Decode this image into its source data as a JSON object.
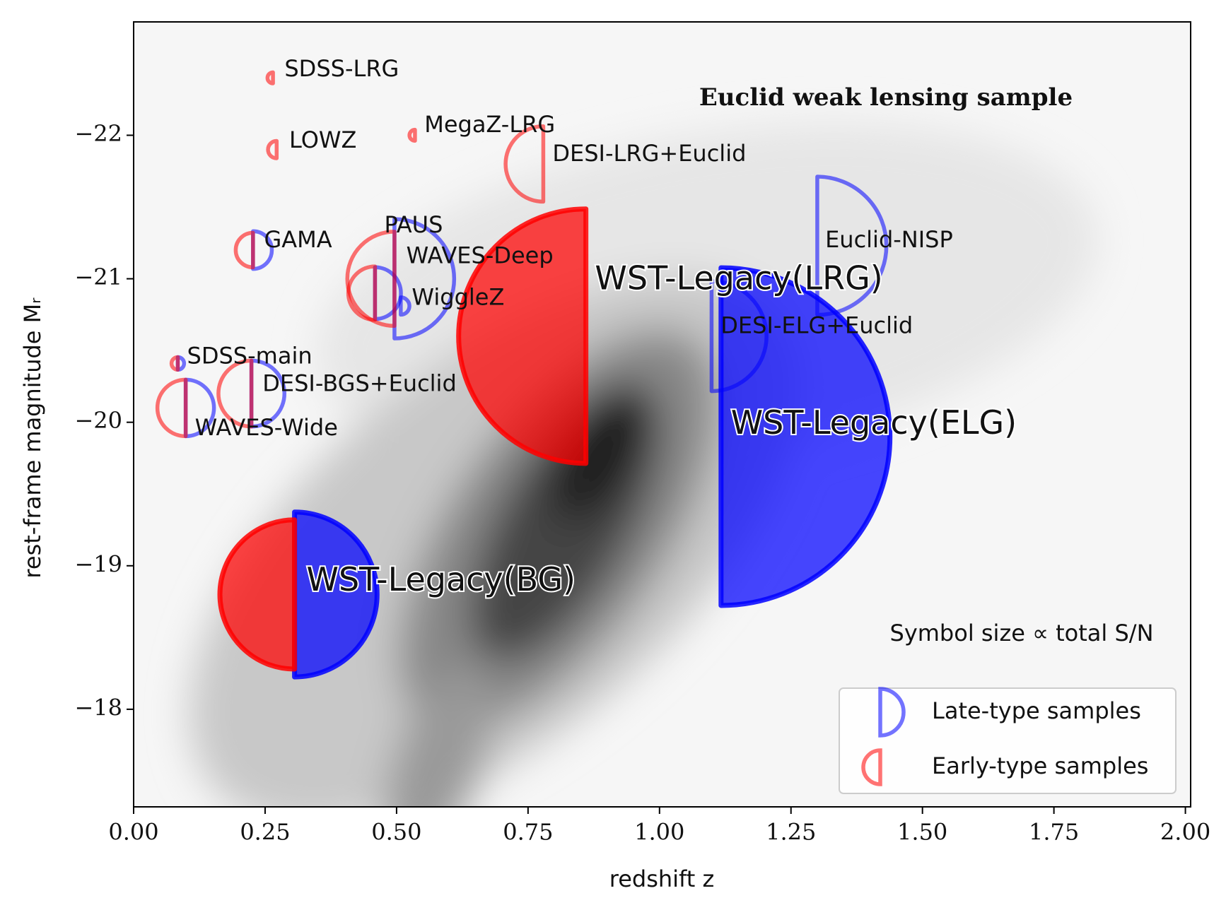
{
  "chart_data": {
    "type": "scatter",
    "title": "Euclid weak lensing sample",
    "xlabel": "redshift z",
    "ylabel": "rest-frame magnitude Mᵣ",
    "note": "Symbol size ∝ total S/N",
    "xlim": [
      0,
      2.01
    ],
    "ylim": [
      -22.79,
      -17.32
    ],
    "y_inverted": true,
    "xticks": [
      {
        "value": 0,
        "label": "0.00"
      },
      {
        "value": 0.25,
        "label": "0.25"
      },
      {
        "value": 0.5,
        "label": "0.50"
      },
      {
        "value": 0.75,
        "label": "0.75"
      },
      {
        "value": 1,
        "label": "1.00"
      },
      {
        "value": 1.25,
        "label": "1.25"
      },
      {
        "value": 1.5,
        "label": "1.50"
      },
      {
        "value": 1.75,
        "label": "1.75"
      },
      {
        "value": 2,
        "label": "2.00"
      }
    ],
    "yticks": [
      {
        "value": -22,
        "label": "−22"
      },
      {
        "value": -21,
        "label": "−21"
      },
      {
        "value": -20,
        "label": "−20"
      },
      {
        "value": -19,
        "label": "−19"
      },
      {
        "value": -18,
        "label": "−18"
      }
    ],
    "samples": [
      "SDSS-LRG",
      "LOWZ",
      "MegaZ-LRG",
      "DESI-LRG+Euclid",
      "GAMA",
      "PAUS",
      "WAVES-Deep",
      "WiggleZ",
      "SDSS-main",
      "DESI-BGS+Euclid",
      "WAVES-Wide",
      "WST-Legacy(BG)",
      "WST-Legacy(LRG)",
      "WST-Legacy(ELG)",
      "DESI-ELG+Euclid",
      "Euclid-NISP"
    ],
    "x": [
      0.265,
      0.272,
      0.535,
      0.779,
      0.227,
      0.496,
      0.459,
      0.508,
      0.084,
      0.224,
      0.099,
      0.306,
      0.86,
      1.117,
      1.099,
      1.3
    ],
    "y": [
      -22.4,
      -21.9,
      -22.0,
      -21.8,
      -21.2,
      -21.0,
      -20.9,
      -20.81,
      -20.41,
      -20.2,
      -20.1,
      -18.8,
      -20.6,
      -19.9,
      -20.6,
      -21.23
    ],
    "filled": [
      false,
      false,
      false,
      false,
      false,
      false,
      false,
      false,
      false,
      false,
      false,
      true,
      true,
      true,
      false,
      false
    ],
    "series": [
      {
        "name": "Late-type samples",
        "color": "#0000ff",
        "side": "right",
        "sizes": [
          null,
          null,
          null,
          null,
          24,
          76,
          33,
          11,
          8,
          42,
          36,
          105,
          null,
          215,
          70,
          88
        ]
      },
      {
        "name": "Early-type samples",
        "color": "#ff0000",
        "side": "left",
        "sizes": [
          7,
          11,
          7,
          48,
          22,
          60,
          34,
          null,
          8,
          42,
          36,
          95,
          162,
          null,
          null,
          null
        ]
      }
    ],
    "legend": "lower right"
  }
}
